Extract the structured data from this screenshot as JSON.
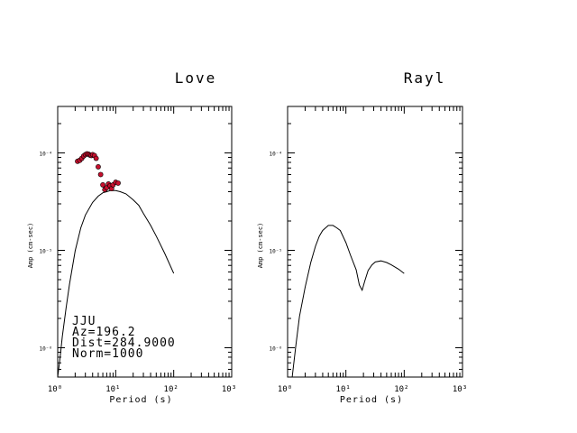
{
  "chart_data": [
    {
      "type": "line",
      "title": "Love",
      "xlabel": "Period (s)",
      "ylabel": "Amp (cm-sec)",
      "x_scale": "log",
      "y_scale": "log",
      "xlim": [
        1,
        1000
      ],
      "ylim": [
        5e-07,
        0.0003
      ],
      "x_ticks": [
        "1",
        "10",
        "100",
        "1000"
      ],
      "y_ticks": [
        "0.0001",
        "0.00001",
        "0.000001"
      ],
      "series": [
        {
          "kind": "line",
          "x": [
            1.0,
            1.1,
            1.2,
            1.4,
            1.6,
            2.0,
            2.5,
            3.0,
            4.0,
            5.0,
            6.0,
            7.0,
            8.0,
            10.0,
            12.0,
            15.0,
            20.0,
            25.0,
            30.0,
            40.0,
            50.0,
            70.0,
            100.0
          ],
          "y": [
            5e-07,
            8e-07,
            1.3e-06,
            2.6e-06,
            4.5e-06,
            9.9e-06,
            1.7e-05,
            2.3e-05,
            3.1e-05,
            3.6e-05,
            3.9e-05,
            4e-05,
            4.1e-05,
            4.1e-05,
            4e-05,
            3.8e-05,
            3.3e-05,
            2.9e-05,
            2.4e-05,
            1.8e-05,
            1.4e-05,
            9.3e-06,
            5.8e-06
          ]
        },
        {
          "kind": "scatter",
          "color": "#c8102e",
          "x": [
            2.2,
            2.4,
            2.6,
            2.8,
            3.0,
            3.2,
            3.4,
            3.6,
            3.8,
            4.0,
            4.3,
            4.6,
            5.0,
            5.5,
            6.0,
            6.5,
            7.0,
            7.5,
            8.0,
            8.5,
            9.0,
            10.0,
            11.0
          ],
          "y": [
            8.2e-05,
            8.4e-05,
            8.8e-05,
            9.3e-05,
            9.6e-05,
            9.8e-05,
            9.7e-05,
            9.5e-05,
            9.4e-05,
            9.6e-05,
            9.4e-05,
            8.8e-05,
            7.2e-05,
            6e-05,
            4.7e-05,
            4.2e-05,
            4.4e-05,
            4.8e-05,
            4.6e-05,
            4.3e-05,
            4.7e-05,
            5e-05,
            4.9e-05
          ]
        }
      ],
      "annotations": [
        "JJU",
        "Az=196.2",
        "Dist=284.9000",
        "Norm=1000"
      ]
    },
    {
      "type": "line",
      "title": "Rayl",
      "xlabel": "Period (s)",
      "ylabel": "Amp (cm-sec)",
      "x_scale": "log",
      "y_scale": "log",
      "xlim": [
        1,
        1000
      ],
      "ylim": [
        5e-07,
        0.0003
      ],
      "x_ticks": [
        "1",
        "10",
        "100",
        "1000"
      ],
      "y_ticks": [
        "0.0001",
        "0.00001",
        "0.000001"
      ],
      "series": [
        {
          "kind": "line",
          "x": [
            1.2,
            1.4,
            1.6,
            2.0,
            2.5,
            3.0,
            3.5,
            4.0,
            5.0,
            6.0,
            7.0,
            8.0,
            10.0,
            12.0,
            15.0,
            17.0,
            19.0,
            21.0,
            24.0,
            28.0,
            32.0,
            40.0,
            50.0,
            60.0,
            80.0,
            100.0
          ],
          "y": [
            5e-07,
            1.1e-06,
            2.1e-06,
            4.2e-06,
            7.5e-06,
            1.1e-05,
            1.4e-05,
            1.6e-05,
            1.8e-05,
            1.8e-05,
            1.7e-05,
            1.6e-05,
            1.2e-05,
            8.9e-06,
            6.3e-06,
            4.4e-06,
            3.9e-06,
            4.8e-06,
            6.2e-06,
            7.1e-06,
            7.6e-06,
            7.8e-06,
            7.5e-06,
            7.1e-06,
            6.4e-06,
            5.8e-06
          ]
        }
      ]
    }
  ]
}
